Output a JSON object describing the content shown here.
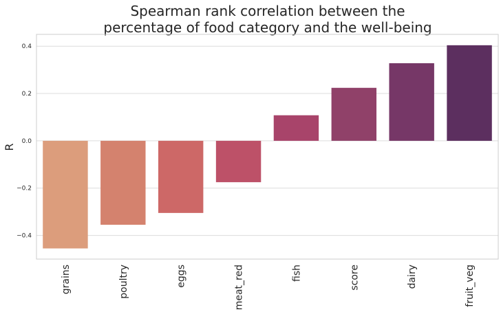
{
  "chart_data": {
    "type": "bar",
    "title_lines": [
      "Spearman rank correlation between the",
      "percentage of food category and the well-being"
    ],
    "xlabel": "",
    "ylabel": "R",
    "categories": [
      "grains",
      "poultry",
      "eggs",
      "meat_red",
      "fish",
      "score",
      "dairy",
      "fruit_veg"
    ],
    "values": [
      -0.455,
      -0.355,
      -0.305,
      -0.175,
      0.108,
      0.224,
      0.328,
      0.404
    ],
    "colors": [
      "#dc9d7c",
      "#d4826e",
      "#cd6867",
      "#bd5168",
      "#a8446a",
      "#904169",
      "#763767",
      "#5c2f5f"
    ],
    "ylim": [
      -0.5,
      0.45
    ],
    "yticks": [
      0.4,
      0.2,
      0.0,
      -0.2,
      -0.4
    ],
    "ytick_labels": [
      "0.4",
      "0.2",
      "0.0",
      "−0.2",
      "−0.4"
    ],
    "grid": "horizontal"
  }
}
